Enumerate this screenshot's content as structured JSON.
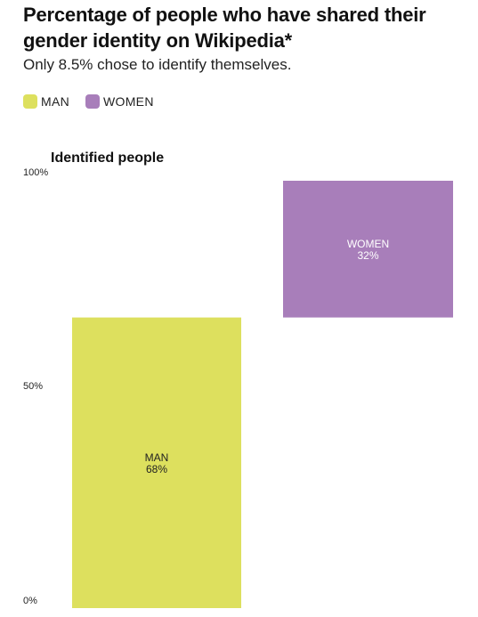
{
  "header": {
    "title": "Percentage of people who have shared their gender identity on Wikipedia*",
    "subtitle": "Only 8.5% chose to identify themselves."
  },
  "legend": [
    {
      "label": "MAN",
      "color": "#dde05e"
    },
    {
      "label": "WOMEN",
      "color": "#a87eba"
    }
  ],
  "chart_data": {
    "type": "bar",
    "title": "Identified people",
    "xlabel": "",
    "ylabel": "",
    "ylim": [
      0,
      100
    ],
    "yticks": [
      {
        "value": 0,
        "label": "0%"
      },
      {
        "value": 50,
        "label": "50%"
      },
      {
        "value": 100,
        "label": "100%"
      }
    ],
    "stacked": true,
    "grid": false,
    "legend_position": "top-left",
    "series": [
      {
        "name": "MAN",
        "category_label": "MAN",
        "value": 68,
        "value_label": "68%",
        "base": 0,
        "color": "#dde05e",
        "text_color": "#222222"
      },
      {
        "name": "WOMEN",
        "category_label": "WOMEN",
        "value": 32,
        "value_label": "32%",
        "base": 68,
        "color": "#a87eba",
        "text_color": "#ffffff"
      }
    ]
  }
}
